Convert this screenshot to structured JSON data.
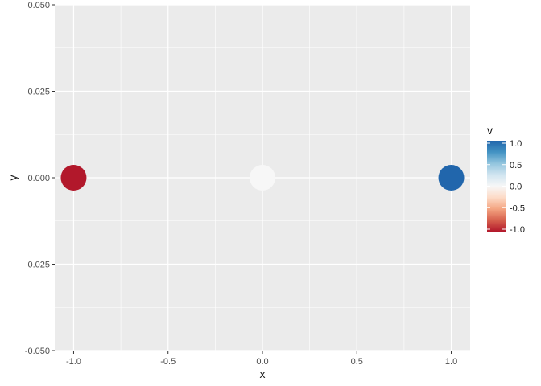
{
  "chart_data": {
    "type": "scatter",
    "title": "",
    "xlabel": "x",
    "ylabel": "y",
    "xlim": [
      -1.1,
      1.1
    ],
    "ylim": [
      -0.05,
      0.05
    ],
    "x_ticks": [
      -1.0,
      -0.5,
      0.0,
      0.5,
      1.0
    ],
    "x_tick_labels": [
      "-1.0",
      "-0.5",
      "0.0",
      "0.5",
      "1.0"
    ],
    "y_ticks": [
      -0.05,
      -0.025,
      0.0,
      0.025,
      0.05
    ],
    "y_tick_labels": [
      "-0.050",
      "-0.025",
      "0.000",
      "0.025",
      "0.050"
    ],
    "grid": true,
    "points": [
      {
        "x": -1.0,
        "y": 0.0,
        "v": -1.0
      },
      {
        "x": 0.0,
        "y": 0.0,
        "v": 0.0
      },
      {
        "x": 1.0,
        "y": 0.0,
        "v": 1.0
      }
    ],
    "colorbar": {
      "title": "v",
      "ticks": [
        1.0,
        0.5,
        0.0,
        -0.5,
        -1.0
      ],
      "tick_labels": [
        "1.0",
        "0.5",
        "0.0",
        "-0.5",
        "-1.0"
      ],
      "range": [
        -1.0,
        1.0
      ],
      "palette": "RdBu",
      "colors": [
        "#b2182b",
        "#d6604d",
        "#f4a582",
        "#fddbc7",
        "#f7f7f7",
        "#d1e5f0",
        "#92c5de",
        "#4393c3",
        "#2166ac"
      ],
      "legend_position": "right"
    },
    "colors": {
      "panel_background": "#ebebeb",
      "grid_major": "#ffffff"
    }
  }
}
